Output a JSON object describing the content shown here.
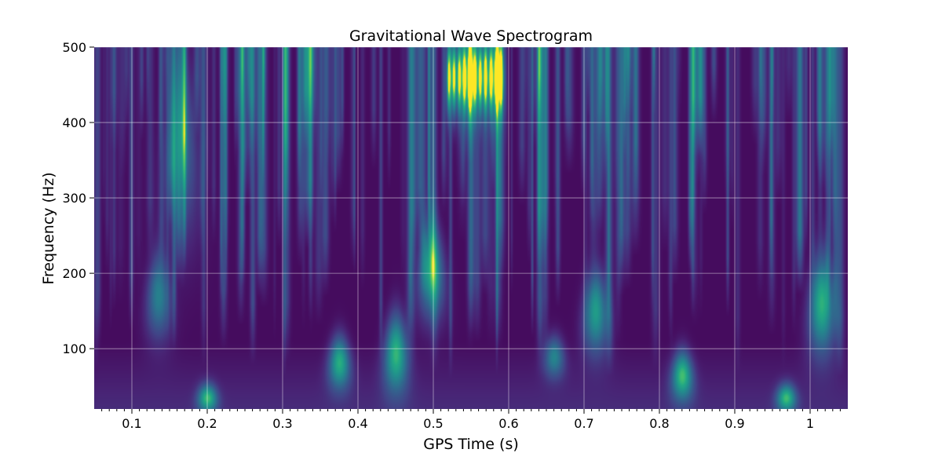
{
  "chart_data": {
    "type": "heatmap",
    "title": "Gravitational Wave Spectrogram",
    "xlabel": "GPS Time (s)",
    "ylabel": "Frequency (Hz)",
    "xlim": [
      0.05,
      1.05
    ],
    "ylim": [
      20,
      500
    ],
    "x_ticks": [
      0.1,
      0.2,
      0.3,
      0.4,
      0.5,
      0.6,
      0.7,
      0.8,
      0.9,
      1.0
    ],
    "x_tick_labels": [
      "0.1",
      "0.2",
      "0.3",
      "0.4",
      "0.5",
      "0.6",
      "0.7",
      "0.8",
      "0.9",
      "1"
    ],
    "y_ticks": [
      100,
      200,
      300,
      400,
      500
    ],
    "y_tick_labels": [
      "100",
      "200",
      "300",
      "400",
      "500"
    ],
    "grid": true,
    "colormap": "viridis",
    "features": [
      {
        "t": 0.52,
        "t_end": 0.59,
        "f_low": 420,
        "f_high": 500,
        "intensity": 1.0
      },
      {
        "t": 0.497,
        "f_low": 150,
        "f_high": 260,
        "intensity": 0.7
      },
      {
        "t": 0.45,
        "f_low": 50,
        "f_high": 140,
        "intensity": 0.75
      },
      {
        "t": 0.375,
        "f_low": 55,
        "f_high": 110,
        "intensity": 0.7
      },
      {
        "t": 0.2,
        "f_low": 25,
        "f_high": 45,
        "intensity": 0.7
      },
      {
        "t": 0.135,
        "f_low": 120,
        "f_high": 220,
        "intensity": 0.5
      },
      {
        "t": 0.715,
        "f_low": 100,
        "f_high": 200,
        "intensity": 0.65
      },
      {
        "t": 0.66,
        "f_low": 70,
        "f_high": 110,
        "intensity": 0.5
      },
      {
        "t": 0.83,
        "f_low": 40,
        "f_high": 90,
        "intensity": 0.75
      },
      {
        "t": 0.968,
        "f_low": 25,
        "f_high": 45,
        "intensity": 0.7
      },
      {
        "t": 1.015,
        "f_low": 100,
        "f_high": 220,
        "intensity": 0.75
      },
      {
        "t": 0.165,
        "f_low": 250,
        "f_high": 500,
        "intensity": 0.4
      }
    ]
  }
}
